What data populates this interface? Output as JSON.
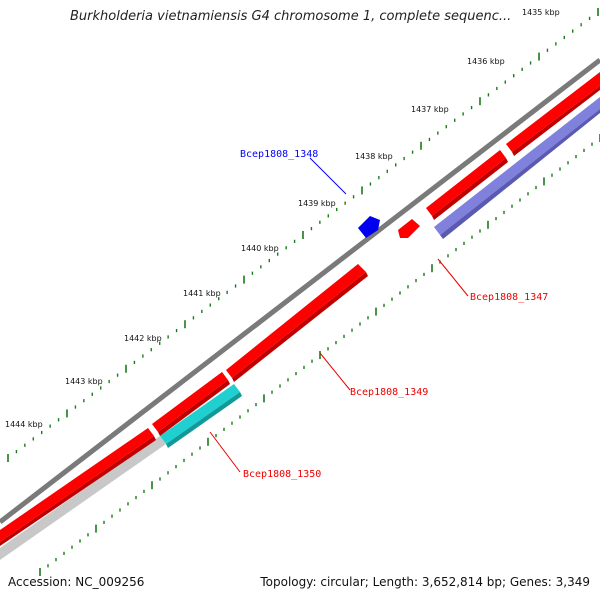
{
  "title": "Burkholderia vietnamiensis G4 chromosome 1, complete sequenc...",
  "footer": {
    "accession": "Accession: NC_009256",
    "topology": "Topology: circular; Length: 3,652,814 bp; Genes: 3,349"
  },
  "ticks": [
    {
      "label": "1435 kbp"
    },
    {
      "label": "1436 kbp"
    },
    {
      "label": "1437 kbp"
    },
    {
      "label": "1438 kbp"
    },
    {
      "label": "1439 kbp"
    },
    {
      "label": "1440 kbp"
    },
    {
      "label": "1441 kbp"
    },
    {
      "label": "1442 kbp"
    },
    {
      "label": "1443 kbp"
    },
    {
      "label": "1444 kbp"
    }
  ],
  "genes": [
    {
      "label": "Bcep1808_1348",
      "color": "#0000ff"
    },
    {
      "label": "Bcep1808_1347",
      "color": "#ee0000"
    },
    {
      "label": "Bcep1808_1349",
      "color": "#ee0000"
    },
    {
      "label": "Bcep1808_1350",
      "color": "#ee0000"
    }
  ],
  "colors": {
    "backbone": "#7a7a7a",
    "cds": "#ff0000",
    "cds_dark": "#c00000",
    "blue_feature": "#0000ee",
    "purple_track": "#8080dd",
    "cyan_track": "#20d0d0",
    "gray_track": "#c8c8c8",
    "tick_green": "#1b7a1b"
  }
}
